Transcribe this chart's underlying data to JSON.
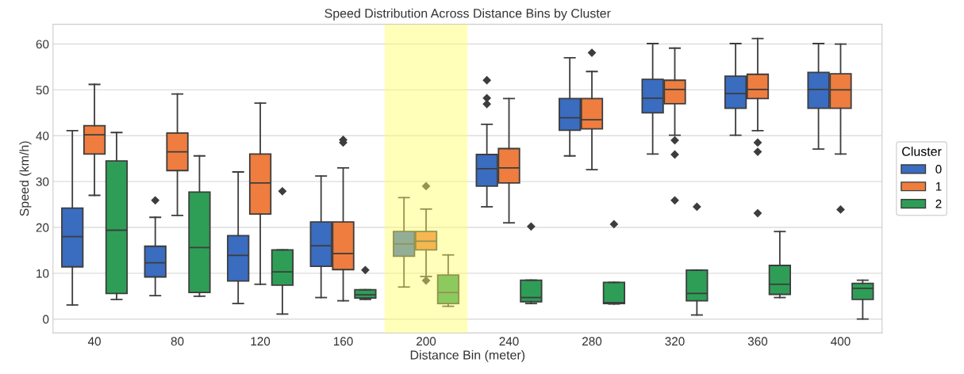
{
  "chart_data": {
    "type": "box",
    "title": "Speed Distribution Across Distance Bins by Cluster",
    "xlabel": "Distance Bin (meter)",
    "ylabel": "Speed (km/h)",
    "legend_title": "Cluster",
    "categories": [
      "40",
      "80",
      "120",
      "160",
      "200",
      "240",
      "280",
      "320",
      "360",
      "400"
    ],
    "ylim": [
      -3,
      64.3
    ],
    "yticks": [
      0,
      10,
      20,
      30,
      40,
      50,
      60
    ],
    "grid": "y",
    "legend": "right",
    "bands": [
      {
        "axis": "x",
        "from": "200",
        "to": "200",
        "color": "#ffff66"
      }
    ],
    "series": [
      {
        "name": "0",
        "color": "#3a6cc0",
        "boxes": [
          {
            "low": 3.1,
            "q1": 11.4,
            "median": 18.0,
            "q3": 24.2,
            "high": 41.1
          },
          {
            "low": 5.1,
            "q1": 9.2,
            "median": 12.3,
            "q3": 15.9,
            "high": 22.2,
            "outliers": [
              25.9
            ]
          },
          {
            "low": 3.4,
            "q1": 8.3,
            "median": 13.9,
            "q3": 18.2,
            "high": 32.1
          },
          {
            "low": 4.7,
            "q1": 11.5,
            "median": 16.0,
            "q3": 21.2,
            "high": 31.2
          },
          {
            "low": 7.0,
            "q1": 13.7,
            "median": 16.4,
            "q3": 19.1,
            "high": 26.5
          },
          {
            "low": 24.5,
            "q1": 29.0,
            "median": 32.8,
            "q3": 35.9,
            "high": 42.5,
            "outliers": [
              52.1,
              48.2,
              46.9
            ]
          },
          {
            "low": 35.6,
            "q1": 41.2,
            "median": 43.9,
            "q3": 48.1,
            "high": 57.0
          },
          {
            "low": 36.0,
            "q1": 45.0,
            "median": 48.2,
            "q3": 52.3,
            "high": 60.1
          },
          {
            "low": 40.1,
            "q1": 46.0,
            "median": 49.2,
            "q3": 53.0,
            "high": 60.1
          },
          {
            "low": 37.1,
            "q1": 46.0,
            "median": 50.1,
            "q3": 53.8,
            "high": 60.1
          }
        ]
      },
      {
        "name": "1",
        "color": "#ee7d3f",
        "boxes": [
          {
            "low": 27.0,
            "q1": 36.0,
            "median": 40.2,
            "q3": 42.2,
            "high": 51.2
          },
          {
            "low": 22.6,
            "q1": 32.4,
            "median": 36.5,
            "q3": 40.6,
            "high": 49.1
          },
          {
            "low": 7.6,
            "q1": 22.9,
            "median": 29.7,
            "q3": 36.0,
            "high": 47.1
          },
          {
            "low": 4.0,
            "q1": 10.8,
            "median": 14.3,
            "q3": 21.2,
            "high": 33.0,
            "outliers": [
              39.1,
              38.5
            ]
          },
          {
            "low": 9.3,
            "q1": 15.1,
            "median": 17.0,
            "q3": 19.1,
            "high": 24.0,
            "outliers": [
              29.0,
              8.4
            ]
          },
          {
            "low": 21.0,
            "q1": 29.7,
            "median": 33.0,
            "q3": 37.2,
            "high": 48.1
          },
          {
            "low": 32.6,
            "q1": 41.5,
            "median": 43.5,
            "q3": 48.1,
            "high": 54.0,
            "outliers": [
              58.1
            ]
          },
          {
            "low": 40.1,
            "q1": 47.0,
            "median": 50.1,
            "q3": 52.1,
            "high": 59.1,
            "outliers": [
              39.0,
              35.9,
              25.9
            ]
          },
          {
            "low": 41.1,
            "q1": 48.1,
            "median": 50.1,
            "q3": 53.4,
            "high": 61.2,
            "outliers": [
              38.5,
              36.5,
              23.1
            ]
          },
          {
            "low": 36.0,
            "q1": 46.0,
            "median": 50.0,
            "q3": 53.5,
            "high": 60.0,
            "outliers": [
              23.9
            ]
          }
        ]
      },
      {
        "name": "2",
        "color": "#2e9e57",
        "boxes": [
          {
            "low": 4.3,
            "q1": 5.6,
            "median": 19.4,
            "q3": 34.5,
            "high": 40.7
          },
          {
            "low": 5.0,
            "q1": 5.8,
            "median": 15.6,
            "q3": 27.7,
            "high": 35.6
          },
          {
            "low": 1.1,
            "q1": 7.4,
            "median": 10.3,
            "q3": 15.1,
            "high": 15.1,
            "outliers": [
              27.9
            ]
          },
          {
            "low": 4.3,
            "q1": 4.6,
            "median": 5.3,
            "q3": 6.4,
            "high": 6.4,
            "outliers": [
              10.7
            ]
          },
          {
            "low": 2.8,
            "q1": 3.4,
            "median": 5.8,
            "q3": 9.6,
            "high": 14.0
          },
          {
            "low": 3.4,
            "q1": 3.8,
            "median": 4.7,
            "q3": 8.5,
            "high": 8.5,
            "outliers": [
              20.2
            ]
          },
          {
            "low": 3.3,
            "q1": 3.4,
            "median": 3.6,
            "q3": 8.0,
            "high": 8.0,
            "outliers": [
              20.7
            ]
          },
          {
            "low": 0.9,
            "q1": 4.0,
            "median": 5.6,
            "q3": 10.7,
            "high": 10.7,
            "outliers": [
              24.5
            ]
          },
          {
            "low": 4.7,
            "q1": 5.4,
            "median": 7.6,
            "q3": 11.7,
            "high": 19.1
          },
          {
            "low": 0.0,
            "q1": 4.3,
            "median": 6.7,
            "q3": 7.8,
            "high": 8.5
          }
        ]
      }
    ]
  }
}
